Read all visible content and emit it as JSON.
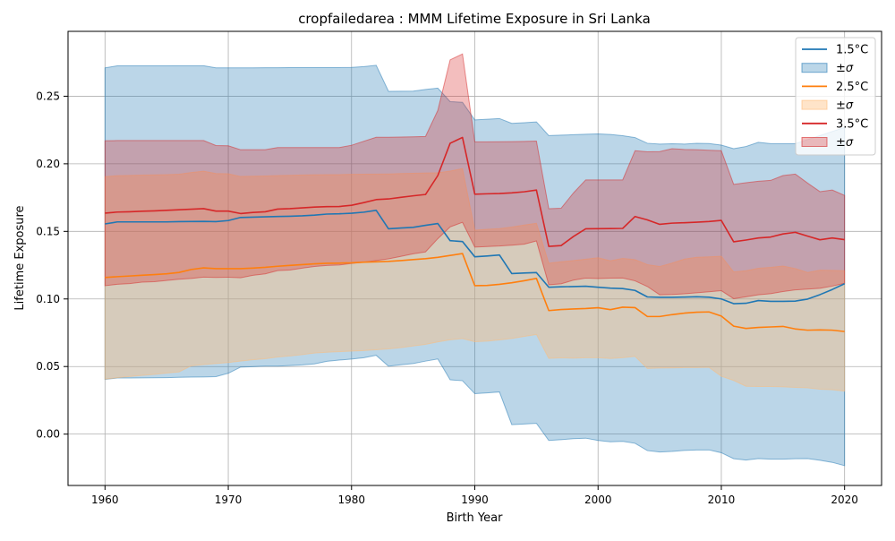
{
  "chart_data": {
    "type": "line",
    "title": "cropfailedarea : MMM Lifetime Exposure in Sri Lanka",
    "xlabel": "Birth Year",
    "ylabel": "Lifetime Exposure",
    "xlim": [
      1957,
      2023
    ],
    "ylim": [
      -0.038,
      0.298
    ],
    "xticks": [
      1960,
      1970,
      1980,
      1990,
      2000,
      2010,
      2020
    ],
    "xtick_labels": [
      "1960",
      "1970",
      "1980",
      "1990",
      "2000",
      "2010",
      "2020"
    ],
    "yticks": [
      0.0,
      0.05,
      0.1,
      0.15,
      0.2,
      0.25
    ],
    "ytick_labels": [
      "0.00",
      "0.05",
      "0.10",
      "0.15",
      "0.20",
      "0.25"
    ],
    "grid": true,
    "legend_position": "top-right",
    "legend": [
      {
        "label": "1.5°C",
        "kind": "line",
        "series": 0
      },
      {
        "label": "±σ",
        "kind": "band",
        "series": 0
      },
      {
        "label": "2.5°C",
        "kind": "line",
        "series": 1
      },
      {
        "label": "±σ",
        "kind": "band",
        "series": 1
      },
      {
        "label": "3.5°C",
        "kind": "line",
        "series": 2
      },
      {
        "label": "±σ",
        "kind": "band",
        "series": 2
      }
    ],
    "x": [
      1960,
      1961,
      1962,
      1963,
      1964,
      1965,
      1966,
      1967,
      1968,
      1969,
      1970,
      1971,
      1972,
      1973,
      1974,
      1975,
      1976,
      1977,
      1978,
      1979,
      1980,
      1981,
      1982,
      1983,
      1984,
      1985,
      1986,
      1987,
      1988,
      1989,
      1990,
      1991,
      1992,
      1993,
      1994,
      1995,
      1996,
      1997,
      1998,
      1999,
      2000,
      2001,
      2002,
      2003,
      2004,
      2005,
      2006,
      2007,
      2008,
      2009,
      2010,
      2011,
      2012,
      2013,
      2014,
      2015,
      2016,
      2017,
      2018,
      2019,
      2020
    ],
    "series": [
      {
        "name": "1.5°C",
        "color": "#1f77b4",
        "band_color": "#1f77b4",
        "values": [
          0.1555,
          0.157,
          0.157,
          0.157,
          0.157,
          0.157,
          0.1572,
          0.1573,
          0.1574,
          0.1572,
          0.158,
          0.1603,
          0.1605,
          0.1608,
          0.161,
          0.1612,
          0.1615,
          0.162,
          0.1628,
          0.163,
          0.1634,
          0.1642,
          0.1656,
          0.1519,
          0.1525,
          0.153,
          0.1545,
          0.1558,
          0.1431,
          0.1425,
          0.1312,
          0.1318,
          0.1325,
          0.1188,
          0.1192,
          0.1195,
          0.1087,
          0.109,
          0.1092,
          0.1094,
          0.1087,
          0.108,
          0.1077,
          0.1063,
          0.1015,
          0.1012,
          0.1012,
          0.1014,
          0.1016,
          0.1013,
          0.1,
          0.0965,
          0.0968,
          0.0988,
          0.0982,
          0.0982,
          0.0984,
          0.0999,
          0.1032,
          0.107,
          0.1113
        ],
        "upper": [
          0.271,
          0.2725,
          0.2725,
          0.2725,
          0.2725,
          0.2725,
          0.2726,
          0.2726,
          0.2726,
          0.271,
          0.271,
          0.271,
          0.271,
          0.2711,
          0.2711,
          0.2712,
          0.2712,
          0.2712,
          0.2712,
          0.2712,
          0.2713,
          0.2719,
          0.2729,
          0.2536,
          0.2537,
          0.2538,
          0.255,
          0.256,
          0.246,
          0.2455,
          0.2325,
          0.233,
          0.2335,
          0.2299,
          0.2304,
          0.231,
          0.2209,
          0.2212,
          0.2215,
          0.2219,
          0.2221,
          0.2217,
          0.2208,
          0.2194,
          0.2152,
          0.2146,
          0.2148,
          0.2146,
          0.2152,
          0.215,
          0.2138,
          0.2112,
          0.2128,
          0.2159,
          0.2149,
          0.2149,
          0.2149,
          0.2179,
          0.2209,
          0.2239,
          0.2269
        ],
        "lower": [
          0.0405,
          0.0415,
          0.0415,
          0.0416,
          0.0417,
          0.0418,
          0.042,
          0.0422,
          0.0423,
          0.0425,
          0.045,
          0.0496,
          0.0499,
          0.0503,
          0.0503,
          0.0507,
          0.0512,
          0.052,
          0.0539,
          0.0548,
          0.0555,
          0.0565,
          0.0583,
          0.0502,
          0.0513,
          0.0522,
          0.054,
          0.0556,
          0.0402,
          0.0395,
          0.0299,
          0.0305,
          0.0312,
          0.007,
          0.0075,
          0.008,
          -0.0047,
          -0.0041,
          -0.0034,
          -0.003,
          -0.0047,
          -0.0057,
          -0.0054,
          -0.0068,
          -0.0122,
          -0.0132,
          -0.0128,
          -0.0121,
          -0.0117,
          -0.0117,
          -0.0138,
          -0.0182,
          -0.0192,
          -0.0181,
          -0.0185,
          -0.0185,
          -0.0182,
          -0.0181,
          -0.0194,
          -0.0209,
          -0.0233
        ]
      },
      {
        "name": "2.5°C",
        "color": "#ff7f0e",
        "band_color": "#ffbb78",
        "values": [
          0.1159,
          0.1165,
          0.117,
          0.1175,
          0.118,
          0.1186,
          0.1196,
          0.1218,
          0.123,
          0.1224,
          0.1224,
          0.1224,
          0.1228,
          0.1234,
          0.1242,
          0.1248,
          0.1254,
          0.126,
          0.1264,
          0.1265,
          0.1267,
          0.1272,
          0.1275,
          0.1278,
          0.1284,
          0.1291,
          0.1298,
          0.1308,
          0.1322,
          0.1336,
          0.1098,
          0.11,
          0.1108,
          0.112,
          0.1135,
          0.1152,
          0.0914,
          0.0922,
          0.0926,
          0.0929,
          0.0935,
          0.0921,
          0.0939,
          0.0936,
          0.087,
          0.087,
          0.0884,
          0.0895,
          0.0902,
          0.0904,
          0.0873,
          0.0799,
          0.0782,
          0.0789,
          0.0793,
          0.0797,
          0.0778,
          0.0769,
          0.0771,
          0.0769,
          0.0759
        ],
        "upper": [
          0.1905,
          0.1912,
          0.1914,
          0.1916,
          0.1918,
          0.192,
          0.1923,
          0.1935,
          0.1945,
          0.1928,
          0.1926,
          0.1906,
          0.1908,
          0.191,
          0.1913,
          0.1915,
          0.1917,
          0.1919,
          0.192,
          0.192,
          0.1922,
          0.1923,
          0.1924,
          0.1925,
          0.1928,
          0.193,
          0.1932,
          0.1934,
          0.1946,
          0.1965,
          0.1509,
          0.1515,
          0.152,
          0.1532,
          0.1547,
          0.156,
          0.1264,
          0.1275,
          0.1284,
          0.1294,
          0.1305,
          0.1283,
          0.13,
          0.1291,
          0.1254,
          0.124,
          0.1265,
          0.1295,
          0.1308,
          0.1312,
          0.1316,
          0.12,
          0.1209,
          0.1227,
          0.1234,
          0.1244,
          0.1225,
          0.1196,
          0.1213,
          0.1211,
          0.1209
        ],
        "lower": [
          0.0407,
          0.0418,
          0.0426,
          0.0434,
          0.0442,
          0.0452,
          0.046,
          0.0505,
          0.0515,
          0.0522,
          0.053,
          0.054,
          0.055,
          0.0558,
          0.057,
          0.0578,
          0.0588,
          0.06,
          0.0606,
          0.061,
          0.0614,
          0.0618,
          0.0624,
          0.0631,
          0.064,
          0.0652,
          0.0664,
          0.0682,
          0.0698,
          0.0707,
          0.0684,
          0.0688,
          0.0697,
          0.0708,
          0.0723,
          0.0737,
          0.056,
          0.0564,
          0.0562,
          0.0565,
          0.0565,
          0.0559,
          0.0565,
          0.0575,
          0.0486,
          0.0489,
          0.049,
          0.0492,
          0.0492,
          0.0494,
          0.0428,
          0.0397,
          0.0354,
          0.0352,
          0.0352,
          0.035,
          0.0346,
          0.0342,
          0.0332,
          0.0328,
          0.0318
        ]
      },
      {
        "name": "3.5°C",
        "color": "#d62728",
        "band_color": "#d62728",
        "values": [
          0.1635,
          0.1643,
          0.1645,
          0.1649,
          0.1652,
          0.1656,
          0.166,
          0.1664,
          0.1668,
          0.165,
          0.165,
          0.1632,
          0.164,
          0.1645,
          0.1665,
          0.1668,
          0.1674,
          0.168,
          0.1683,
          0.1684,
          0.1693,
          0.1713,
          0.1735,
          0.174,
          0.1752,
          0.1763,
          0.1773,
          0.1913,
          0.2152,
          0.2195,
          0.1775,
          0.1778,
          0.178,
          0.1785,
          0.1793,
          0.1806,
          0.1389,
          0.1395,
          0.1462,
          0.1519,
          0.152,
          0.1521,
          0.1522,
          0.161,
          0.1585,
          0.1552,
          0.1561,
          0.1564,
          0.1568,
          0.1573,
          0.1581,
          0.1423,
          0.1436,
          0.1451,
          0.1458,
          0.1481,
          0.1493,
          0.1465,
          0.1438,
          0.1451,
          0.1439
        ],
        "upper": [
          0.2171,
          0.2172,
          0.2172,
          0.2172,
          0.2172,
          0.2172,
          0.2172,
          0.2172,
          0.2172,
          0.2135,
          0.2133,
          0.2104,
          0.2104,
          0.2104,
          0.212,
          0.212,
          0.212,
          0.212,
          0.212,
          0.212,
          0.2137,
          0.2167,
          0.2196,
          0.2196,
          0.2198,
          0.22,
          0.2202,
          0.2395,
          0.2769,
          0.2813,
          0.2162,
          0.2162,
          0.2163,
          0.2164,
          0.2166,
          0.2168,
          0.1668,
          0.1671,
          0.1784,
          0.1881,
          0.1881,
          0.1881,
          0.1881,
          0.2097,
          0.2089,
          0.209,
          0.2112,
          0.2106,
          0.2104,
          0.21,
          0.2097,
          0.1848,
          0.186,
          0.1871,
          0.1877,
          0.1913,
          0.1924,
          0.1857,
          0.1794,
          0.1806,
          0.1766
        ],
        "lower": [
          0.1098,
          0.1109,
          0.1114,
          0.1124,
          0.1128,
          0.1137,
          0.1146,
          0.1152,
          0.1162,
          0.1159,
          0.1161,
          0.1157,
          0.1175,
          0.1186,
          0.121,
          0.1214,
          0.1228,
          0.124,
          0.1248,
          0.1251,
          0.1263,
          0.1272,
          0.1284,
          0.1297,
          0.1315,
          0.1334,
          0.1348,
          0.1446,
          0.1533,
          0.1567,
          0.1384,
          0.1388,
          0.1392,
          0.1398,
          0.1405,
          0.1429,
          0.1105,
          0.1112,
          0.1139,
          0.1154,
          0.1151,
          0.1154,
          0.1155,
          0.1134,
          0.1092,
          0.1031,
          0.1033,
          0.1038,
          0.1046,
          0.1053,
          0.1061,
          0.1002,
          0.1016,
          0.1031,
          0.1039,
          0.1055,
          0.1067,
          0.1073,
          0.1079,
          0.1095,
          0.1116
        ]
      }
    ]
  }
}
